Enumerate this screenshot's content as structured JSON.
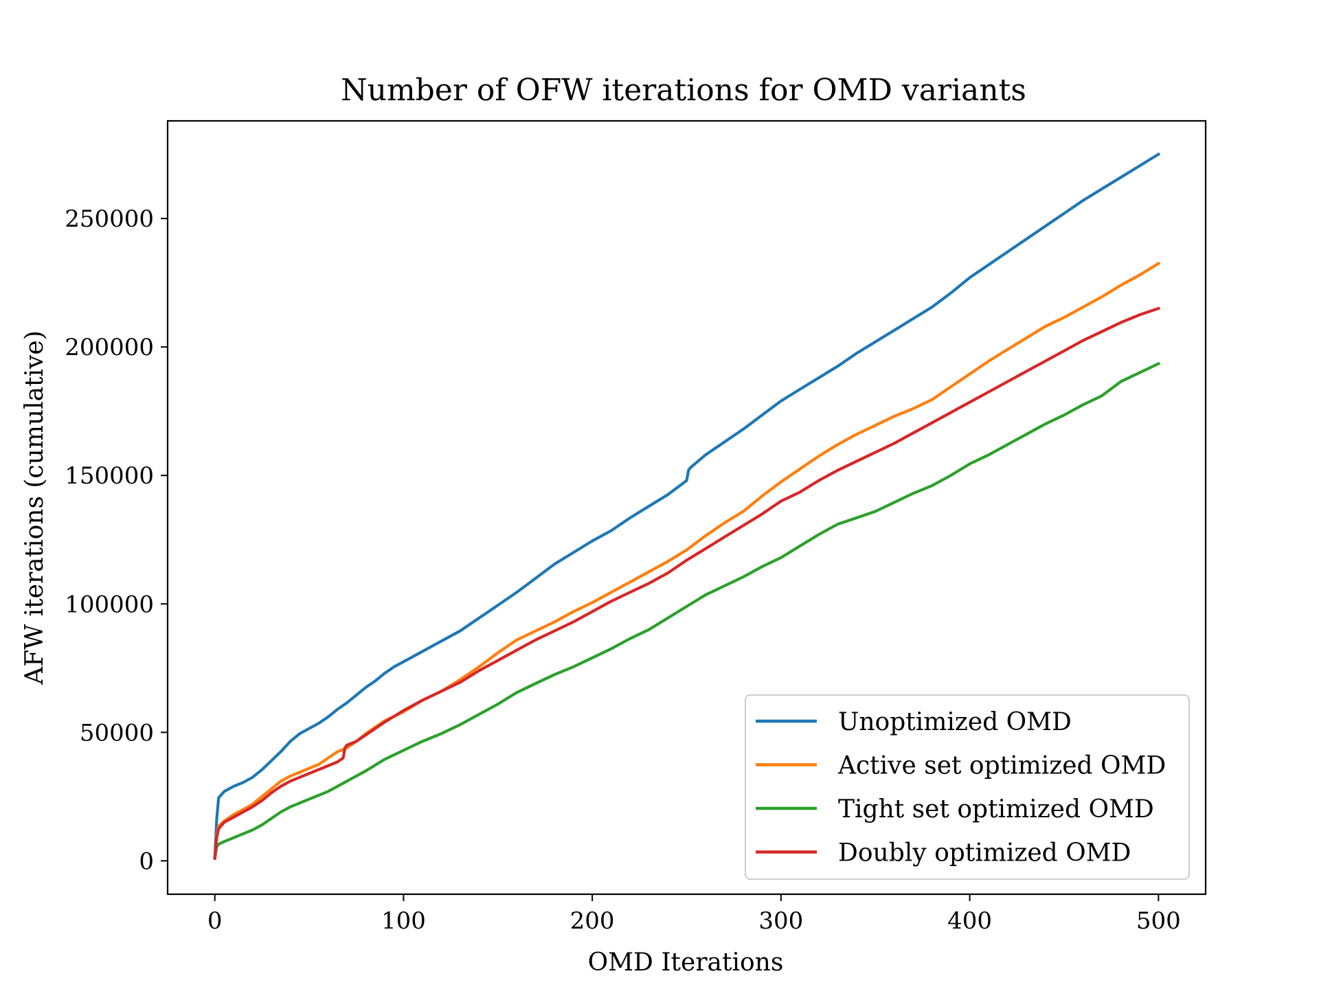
{
  "chart_data": {
    "type": "line",
    "title": "Number of OFW iterations for OMD variants",
    "xlabel": "OMD Iterations",
    "ylabel": "AFW iterations (cumulative)",
    "xlim": [
      -25,
      525
    ],
    "ylim": [
      -13000,
      288000
    ],
    "xticks": [
      0,
      100,
      200,
      300,
      400,
      500
    ],
    "xtick_labels": [
      "0",
      "100",
      "200",
      "300",
      "400",
      "500"
    ],
    "yticks": [
      0,
      50000,
      100000,
      150000,
      200000,
      250000
    ],
    "ytick_labels": [
      "0",
      "50000",
      "100000",
      "150000",
      "200000",
      "250000"
    ],
    "grid": false,
    "legend_position": "lower right",
    "series": [
      {
        "name": "Unoptimized OMD",
        "color": "#1f77b4",
        "x": [
          0,
          1,
          2,
          5,
          10,
          15,
          20,
          25,
          30,
          35,
          40,
          45,
          50,
          55,
          60,
          65,
          70,
          75,
          80,
          85,
          90,
          95,
          100,
          110,
          120,
          130,
          140,
          150,
          160,
          170,
          180,
          190,
          200,
          210,
          220,
          230,
          240,
          250,
          251,
          252,
          260,
          270,
          280,
          290,
          300,
          310,
          320,
          330,
          340,
          350,
          360,
          370,
          380,
          390,
          400,
          410,
          420,
          430,
          440,
          450,
          460,
          470,
          480,
          490,
          500
        ],
        "y": [
          1000,
          16000,
          24500,
          27000,
          29000,
          30500,
          32500,
          35500,
          39000,
          42500,
          46500,
          49500,
          51500,
          53500,
          56000,
          59000,
          61500,
          64500,
          67500,
          70000,
          73000,
          75500,
          77500,
          81500,
          85500,
          89500,
          94500,
          99500,
          104500,
          110000,
          115500,
          120000,
          124500,
          128500,
          133500,
          138000,
          142500,
          148000,
          152000,
          153000,
          158000,
          163000,
          168000,
          173500,
          179000,
          183500,
          188000,
          192500,
          197500,
          202000,
          206500,
          211000,
          215500,
          221000,
          227000,
          232000,
          237000,
          242000,
          247000,
          252000,
          257000,
          261500,
          266000,
          270500,
          275000
        ]
      },
      {
        "name": "Active set optimized OMD",
        "color": "#ff7f0e",
        "x": [
          0,
          1,
          2,
          5,
          10,
          15,
          20,
          25,
          30,
          35,
          40,
          45,
          50,
          55,
          60,
          65,
          70,
          75,
          80,
          90,
          100,
          110,
          120,
          130,
          140,
          150,
          160,
          170,
          180,
          190,
          200,
          210,
          220,
          230,
          240,
          250,
          260,
          270,
          280,
          290,
          300,
          310,
          320,
          330,
          340,
          350,
          360,
          370,
          380,
          390,
          400,
          410,
          420,
          430,
          440,
          450,
          460,
          470,
          480,
          490,
          500
        ],
        "y": [
          1000,
          10000,
          13500,
          15500,
          18000,
          20000,
          22000,
          25000,
          28000,
          31000,
          33000,
          34500,
          36000,
          37500,
          40000,
          42500,
          44000,
          46500,
          49500,
          54500,
          58000,
          62500,
          66000,
          70500,
          75500,
          81000,
          86000,
          89500,
          93000,
          97000,
          100500,
          104500,
          108500,
          112500,
          116500,
          121000,
          126500,
          131500,
          136000,
          142000,
          147500,
          152500,
          157500,
          162000,
          166000,
          169500,
          173000,
          176000,
          179500,
          184500,
          189500,
          194500,
          199000,
          203500,
          208000,
          211500,
          215500,
          219500,
          224000,
          228000,
          232500
        ]
      },
      {
        "name": "Tight set optimized OMD",
        "color": "#2ca02c",
        "x": [
          0,
          1,
          2,
          5,
          10,
          15,
          20,
          25,
          30,
          35,
          40,
          50,
          60,
          70,
          80,
          90,
          100,
          110,
          120,
          130,
          140,
          150,
          160,
          170,
          180,
          190,
          200,
          210,
          220,
          230,
          240,
          250,
          260,
          270,
          280,
          290,
          300,
          310,
          320,
          330,
          340,
          350,
          360,
          370,
          380,
          390,
          400,
          410,
          420,
          430,
          440,
          450,
          460,
          470,
          480,
          490,
          500
        ],
        "y": [
          1000,
          5500,
          6500,
          7500,
          9000,
          10500,
          12000,
          14000,
          16500,
          19000,
          21000,
          24000,
          27000,
          31000,
          35000,
          39500,
          43000,
          46500,
          49500,
          53000,
          57000,
          61000,
          65500,
          69000,
          72500,
          75500,
          79000,
          82500,
          86500,
          90000,
          94500,
          99000,
          103500,
          107000,
          110500,
          114500,
          118000,
          122500,
          127000,
          131000,
          133500,
          136000,
          139500,
          143000,
          146000,
          150000,
          154500,
          158000,
          162000,
          166000,
          170000,
          173500,
          177500,
          181000,
          186500,
          190000,
          193500
        ]
      },
      {
        "name": "Doubly optimized OMD",
        "color": "#d62728",
        "x": [
          0,
          1,
          2,
          5,
          10,
          15,
          20,
          25,
          30,
          35,
          40,
          45,
          50,
          55,
          60,
          65,
          68,
          69,
          70,
          75,
          80,
          90,
          100,
          110,
          120,
          130,
          140,
          150,
          160,
          170,
          180,
          190,
          200,
          210,
          220,
          230,
          240,
          250,
          260,
          270,
          280,
          290,
          300,
          310,
          320,
          330,
          340,
          350,
          360,
          370,
          380,
          390,
          400,
          410,
          420,
          430,
          440,
          450,
          460,
          470,
          480,
          490,
          500
        ],
        "y": [
          1000,
          9000,
          12500,
          15000,
          17000,
          19000,
          21000,
          23500,
          26500,
          29000,
          31000,
          32500,
          34000,
          35500,
          37000,
          38500,
          40000,
          44000,
          45000,
          46500,
          49000,
          54000,
          58500,
          62500,
          66000,
          69500,
          74000,
          78000,
          82000,
          86000,
          89500,
          93000,
          97000,
          101000,
          104500,
          108000,
          112000,
          117000,
          121500,
          126000,
          130500,
          135000,
          140000,
          143500,
          148000,
          152000,
          155500,
          159000,
          162500,
          166500,
          170500,
          174500,
          178500,
          182500,
          186500,
          190500,
          194500,
          198500,
          202500,
          206000,
          209500,
          212500,
          215000
        ]
      }
    ]
  }
}
